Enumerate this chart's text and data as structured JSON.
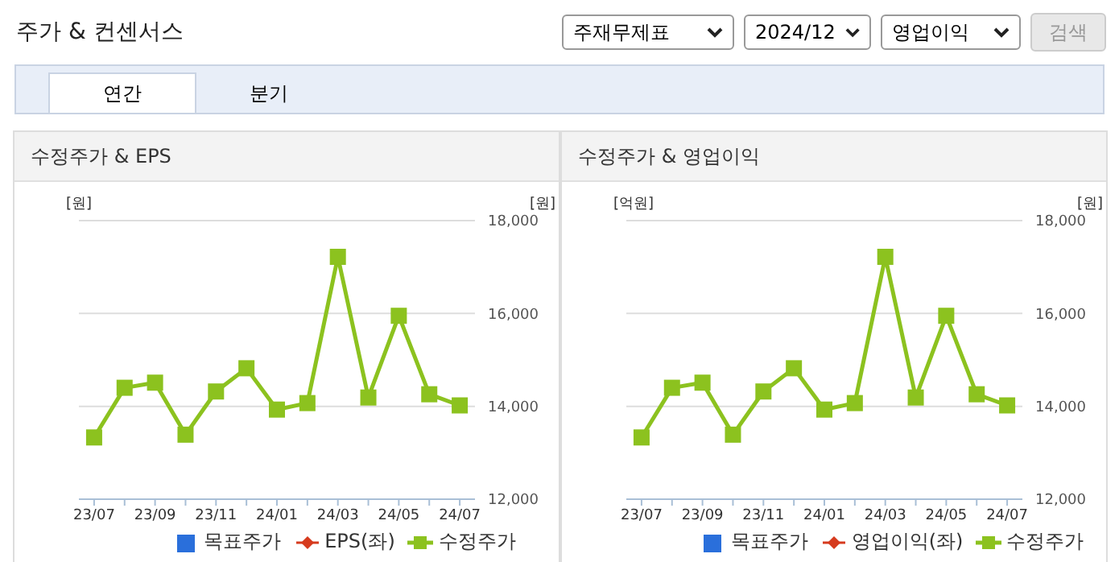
{
  "chart_data": [
    {
      "type": "other",
      "title": "주가 & 컨센서스",
      "annotations": [
        "주재무제표",
        "2024/12",
        "영업이익",
        "검색",
        "연간",
        "분기"
      ]
    },
    {
      "type": "line",
      "title": "수정주가 & EPS",
      "ylabel": "[원]",
      "y2label": "[원]",
      "categories": [
        "23/07",
        null,
        "23/09",
        null,
        "23/11",
        null,
        "24/01",
        null,
        "24/03",
        null,
        "24/05",
        null,
        "24/07"
      ],
      "series": [
        {
          "name": "목표주가",
          "type": "bar",
          "color": "#2a6fdb",
          "values": [
            null,
            null,
            null,
            null,
            null,
            null,
            null,
            null,
            null,
            null,
            null,
            null,
            null
          ]
        },
        {
          "name": "EPS(좌)",
          "type": "line",
          "color": "#d63b1e",
          "values": [
            null,
            null,
            null,
            null,
            null,
            null,
            null,
            null,
            null,
            null,
            null,
            null,
            null
          ]
        },
        {
          "name": "수정주가",
          "type": "line",
          "axis": "y2",
          "color": "#8cc21f",
          "values": [
            13330,
            14400,
            14510,
            13390,
            14320,
            14820,
            13930,
            14070,
            17220,
            14190,
            15950,
            14260,
            14020
          ]
        }
      ],
      "y2lim": [
        12000,
        18000
      ],
      "y2ticks": [
        {
          "value": 12000,
          "label": "12,000"
        },
        {
          "value": 14000,
          "label": "14,000"
        },
        {
          "value": 16000,
          "label": "16,000"
        },
        {
          "value": 18000,
          "label": "18,000"
        }
      ],
      "grid": "y",
      "legend": "bottom",
      "marker": "square"
    },
    {
      "type": "line",
      "title": "수정주가 & 영업이익",
      "ylabel": "[억원]",
      "y2label": "[원]",
      "categories": [
        "23/07",
        null,
        "23/09",
        null,
        "23/11",
        null,
        "24/01",
        null,
        "24/03",
        null,
        "24/05",
        null,
        "24/07"
      ],
      "series": [
        {
          "name": "목표주가",
          "type": "bar",
          "color": "#2a6fdb",
          "values": [
            null,
            null,
            null,
            null,
            null,
            null,
            null,
            null,
            null,
            null,
            null,
            null,
            null
          ]
        },
        {
          "name": "영업이익(좌)",
          "type": "line",
          "color": "#d63b1e",
          "values": [
            null,
            null,
            null,
            null,
            null,
            null,
            null,
            null,
            null,
            null,
            null,
            null,
            null
          ]
        },
        {
          "name": "수정주가",
          "type": "line",
          "axis": "y2",
          "color": "#8cc21f",
          "values": [
            13330,
            14400,
            14510,
            13390,
            14320,
            14820,
            13930,
            14070,
            17220,
            14190,
            15950,
            14260,
            14020
          ]
        }
      ],
      "y2lim": [
        12000,
        18000
      ],
      "y2ticks": [
        {
          "value": 12000,
          "label": "12,000"
        },
        {
          "value": 14000,
          "label": "14,000"
        },
        {
          "value": 16000,
          "label": "16,000"
        },
        {
          "value": 18000,
          "label": "18,000"
        }
      ],
      "grid": "y",
      "legend": "bottom",
      "marker": "square"
    }
  ]
}
